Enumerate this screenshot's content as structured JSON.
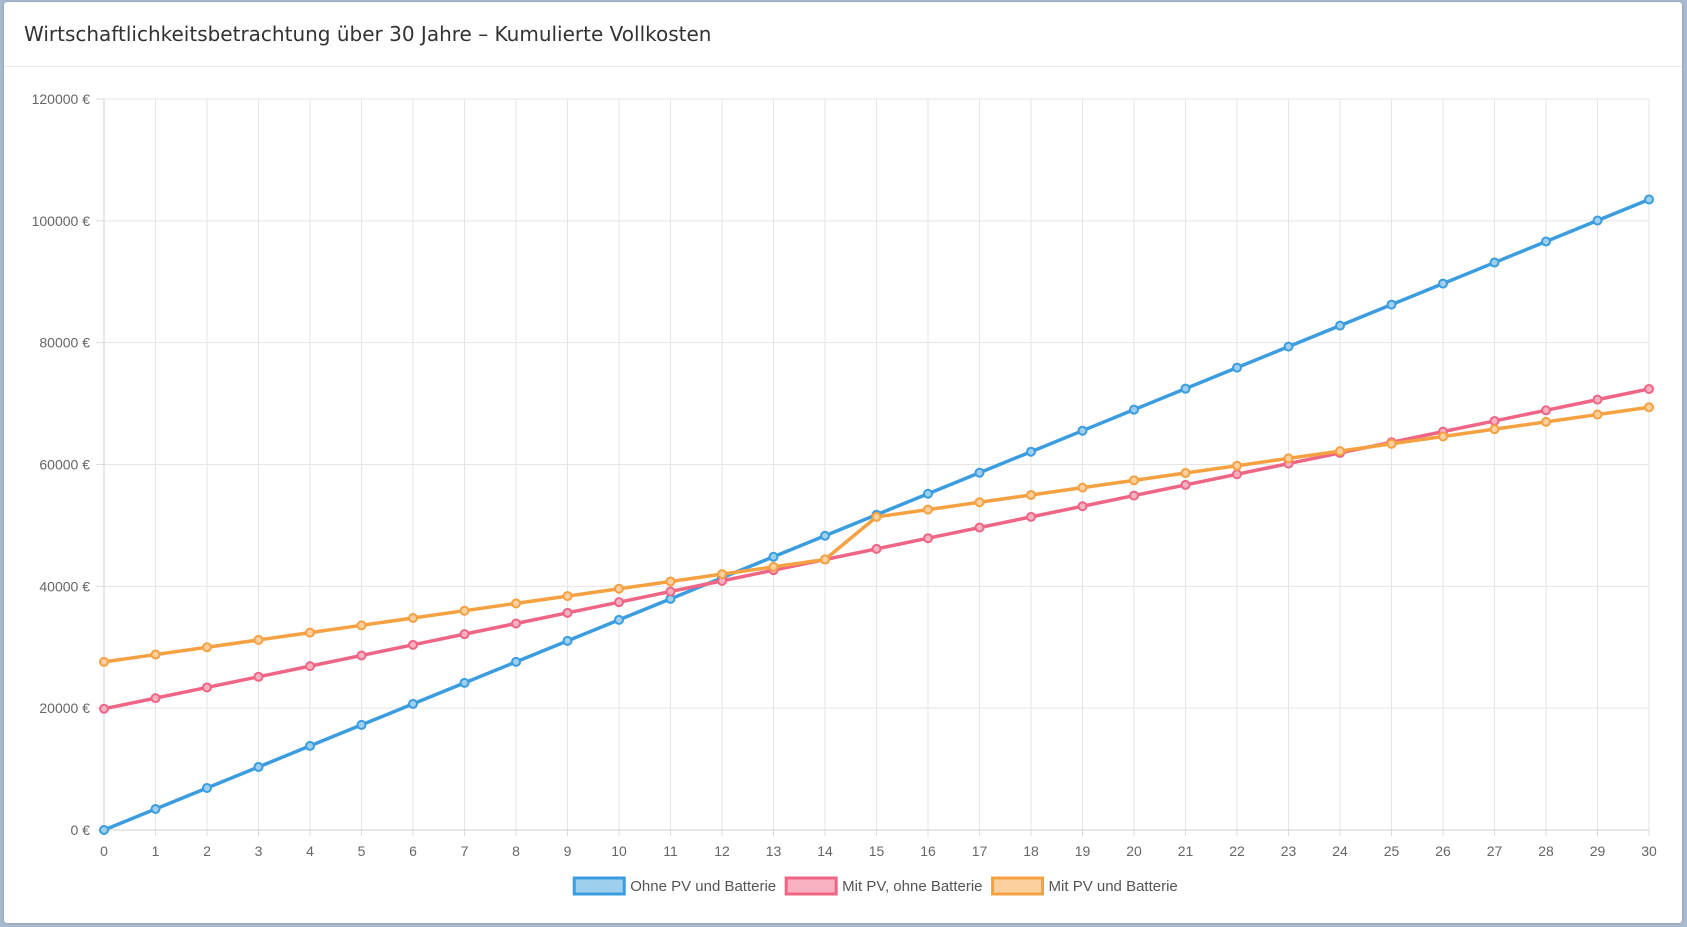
{
  "card": {
    "title": "Wirtschaftlichkeitsbetrachtung über 30 Jahre – Kumulierte Vollkosten"
  },
  "chart_data": {
    "type": "line",
    "title": "Wirtschaftlichkeitsbetrachtung über 30 Jahre – Kumulierte Vollkosten",
    "xlabel": "",
    "ylabel": "",
    "x": [
      0,
      1,
      2,
      3,
      4,
      5,
      6,
      7,
      8,
      9,
      10,
      11,
      12,
      13,
      14,
      15,
      16,
      17,
      18,
      19,
      20,
      21,
      22,
      23,
      24,
      25,
      26,
      27,
      28,
      29,
      30
    ],
    "ylim": [
      0,
      120000
    ],
    "xlim": [
      0,
      30
    ],
    "y_ticks": [
      "0 €",
      "20000 €",
      "40000 €",
      "60000 €",
      "80000 €",
      "100000 €",
      "120000 €"
    ],
    "y_tick_values": [
      0,
      20000,
      40000,
      60000,
      80000,
      100000,
      120000
    ],
    "grid": true,
    "legend_position": "bottom",
    "series": [
      {
        "name": "Ohne PV und Batterie",
        "color": "#3b9de0",
        "fill": "#9ecfef",
        "values": [
          0,
          3450,
          6900,
          10350,
          13800,
          17250,
          20700,
          24150,
          27600,
          31050,
          34500,
          37950,
          41400,
          44850,
          48300,
          51750,
          55200,
          58650,
          62100,
          65550,
          69000,
          72450,
          75900,
          79350,
          82800,
          86250,
          89700,
          93150,
          96600,
          100050,
          103500
        ]
      },
      {
        "name": "Mit PV, ohne Batterie",
        "color": "#ef6585",
        "fill": "#f8b1c1",
        "values": [
          19900,
          21650,
          23400,
          25150,
          26900,
          28650,
          30400,
          32150,
          33900,
          35650,
          37400,
          39150,
          40900,
          42650,
          44400,
          46150,
          47900,
          49650,
          51400,
          53150,
          54900,
          56650,
          58400,
          60150,
          61900,
          63650,
          65400,
          67150,
          68900,
          70650,
          72400
        ]
      },
      {
        "name": "Mit PV und Batterie",
        "color": "#f5a142",
        "fill": "#fbcf9e",
        "values": [
          27600,
          28800,
          30000,
          31200,
          32400,
          33600,
          34800,
          36000,
          37200,
          38400,
          39600,
          40800,
          42000,
          43200,
          44400,
          51400,
          52600,
          53800,
          55000,
          56200,
          57400,
          58600,
          59800,
          61000,
          62200,
          63400,
          64600,
          65800,
          67000,
          68200,
          69400
        ]
      }
    ]
  }
}
